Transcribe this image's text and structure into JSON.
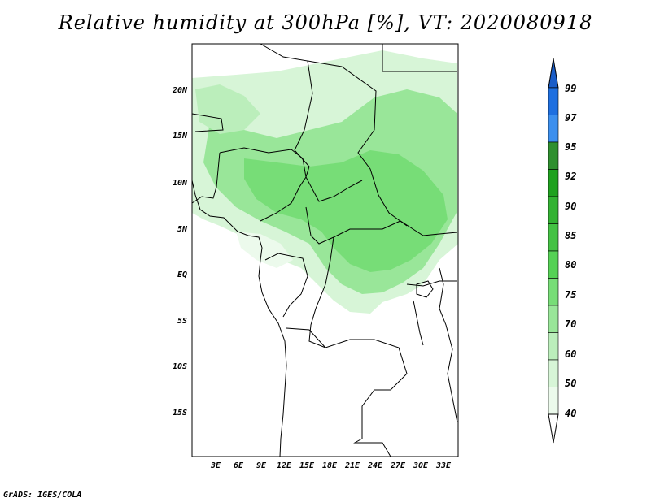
{
  "title": "Relative humidity at 300hPa [%], VT: 2020080918",
  "footer": "GrADS: IGES/COLA",
  "map": {
    "lon_labels": [
      "3E",
      "6E",
      "9E",
      "12E",
      "15E",
      "18E",
      "21E",
      "24E",
      "27E",
      "30E",
      "33E"
    ],
    "lat_labels": [
      "20N",
      "15N",
      "10N",
      "5N",
      "EQ",
      "5S",
      "10S",
      "15S"
    ]
  },
  "colorbar": {
    "labels": [
      "99",
      "97",
      "95",
      "92",
      "90",
      "85",
      "80",
      "75",
      "70",
      "60",
      "50",
      "40"
    ],
    "colors": [
      "#1e6fe0",
      "#3c8fee",
      "#2f8f2f",
      "#1fa11f",
      "#33b233",
      "#44c244",
      "#55d155",
      "#77dd77",
      "#99e699",
      "#bbeebb",
      "#d7f5d7",
      "#ecfaec"
    ],
    "top_color": "#1a5dc8"
  }
}
